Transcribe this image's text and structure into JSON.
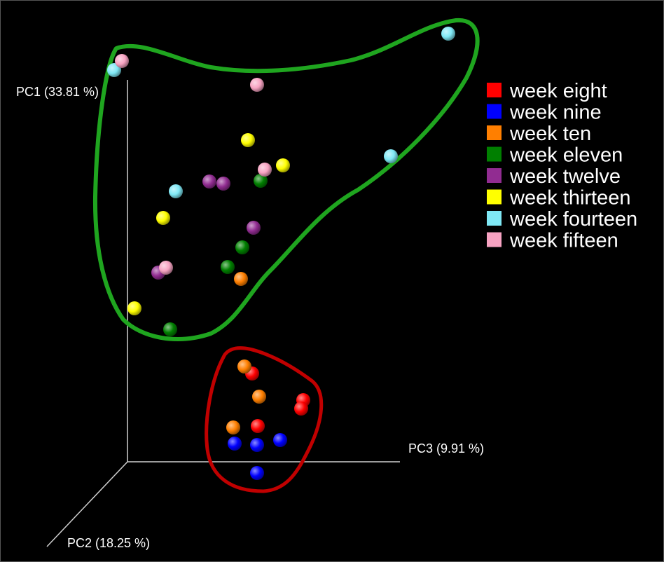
{
  "chart_data": {
    "type": "scatter",
    "title": "",
    "axes": {
      "pc1": "PC1 (33.81 %)",
      "pc2": "PC2 (18.25 %)",
      "pc3": "PC3 (9.91 %)"
    },
    "legend": {
      "placement": "top-right",
      "entries": [
        {
          "label": "week eight",
          "color": "#ff0000"
        },
        {
          "label": "week nine",
          "color": "#0000ff"
        },
        {
          "label": "week ten",
          "color": "#ff7f00"
        },
        {
          "label": "week eleven",
          "color": "#007f00"
        },
        {
          "label": "week twelve",
          "color": "#912c91"
        },
        {
          "label": "week thirteen",
          "color": "#ffff00"
        },
        {
          "label": "week fourteen",
          "color": "#7fe8f5"
        },
        {
          "label": "week fifteen",
          "color": "#f7a3c2"
        }
      ]
    },
    "clusters": [
      {
        "color": "#1fa51f"
      },
      {
        "color": "#c00000"
      }
    ],
    "series": [
      {
        "name": "week eight",
        "color": "#ff0000",
        "points": [
          [
            359,
            532
          ],
          [
            432,
            570
          ],
          [
            429,
            582
          ],
          [
            367,
            607
          ]
        ]
      },
      {
        "name": "week nine",
        "color": "#0000ff",
        "points": [
          [
            334,
            632
          ],
          [
            366,
            634
          ],
          [
            399,
            627
          ],
          [
            366,
            674
          ]
        ]
      },
      {
        "name": "week ten",
        "color": "#ff7f00",
        "points": [
          [
            348,
            522
          ],
          [
            369,
            565
          ],
          [
            332,
            609
          ],
          [
            343,
            397
          ]
        ]
      },
      {
        "name": "week eleven",
        "color": "#007f00",
        "points": [
          [
            371,
            257
          ],
          [
            345,
            352
          ],
          [
            324,
            380
          ],
          [
            242,
            469
          ]
        ]
      },
      {
        "name": "week twelve",
        "color": "#912c91",
        "points": [
          [
            298,
            258
          ],
          [
            318,
            261
          ],
          [
            361,
            324
          ],
          [
            225,
            388
          ]
        ]
      },
      {
        "name": "week thirteen",
        "color": "#ffff00",
        "points": [
          [
            353,
            199
          ],
          [
            403,
            235
          ],
          [
            232,
            310
          ],
          [
            191,
            439
          ]
        ]
      },
      {
        "name": "week fourteen",
        "color": "#7fe8f5",
        "points": [
          [
            639,
            47
          ],
          [
            162,
            99
          ],
          [
            557,
            222
          ],
          [
            250,
            272
          ]
        ]
      },
      {
        "name": "week fifteen",
        "color": "#f7a3c2",
        "points": [
          [
            173,
            86
          ],
          [
            366,
            120
          ],
          [
            377,
            241
          ],
          [
            236,
            381
          ]
        ]
      }
    ]
  }
}
